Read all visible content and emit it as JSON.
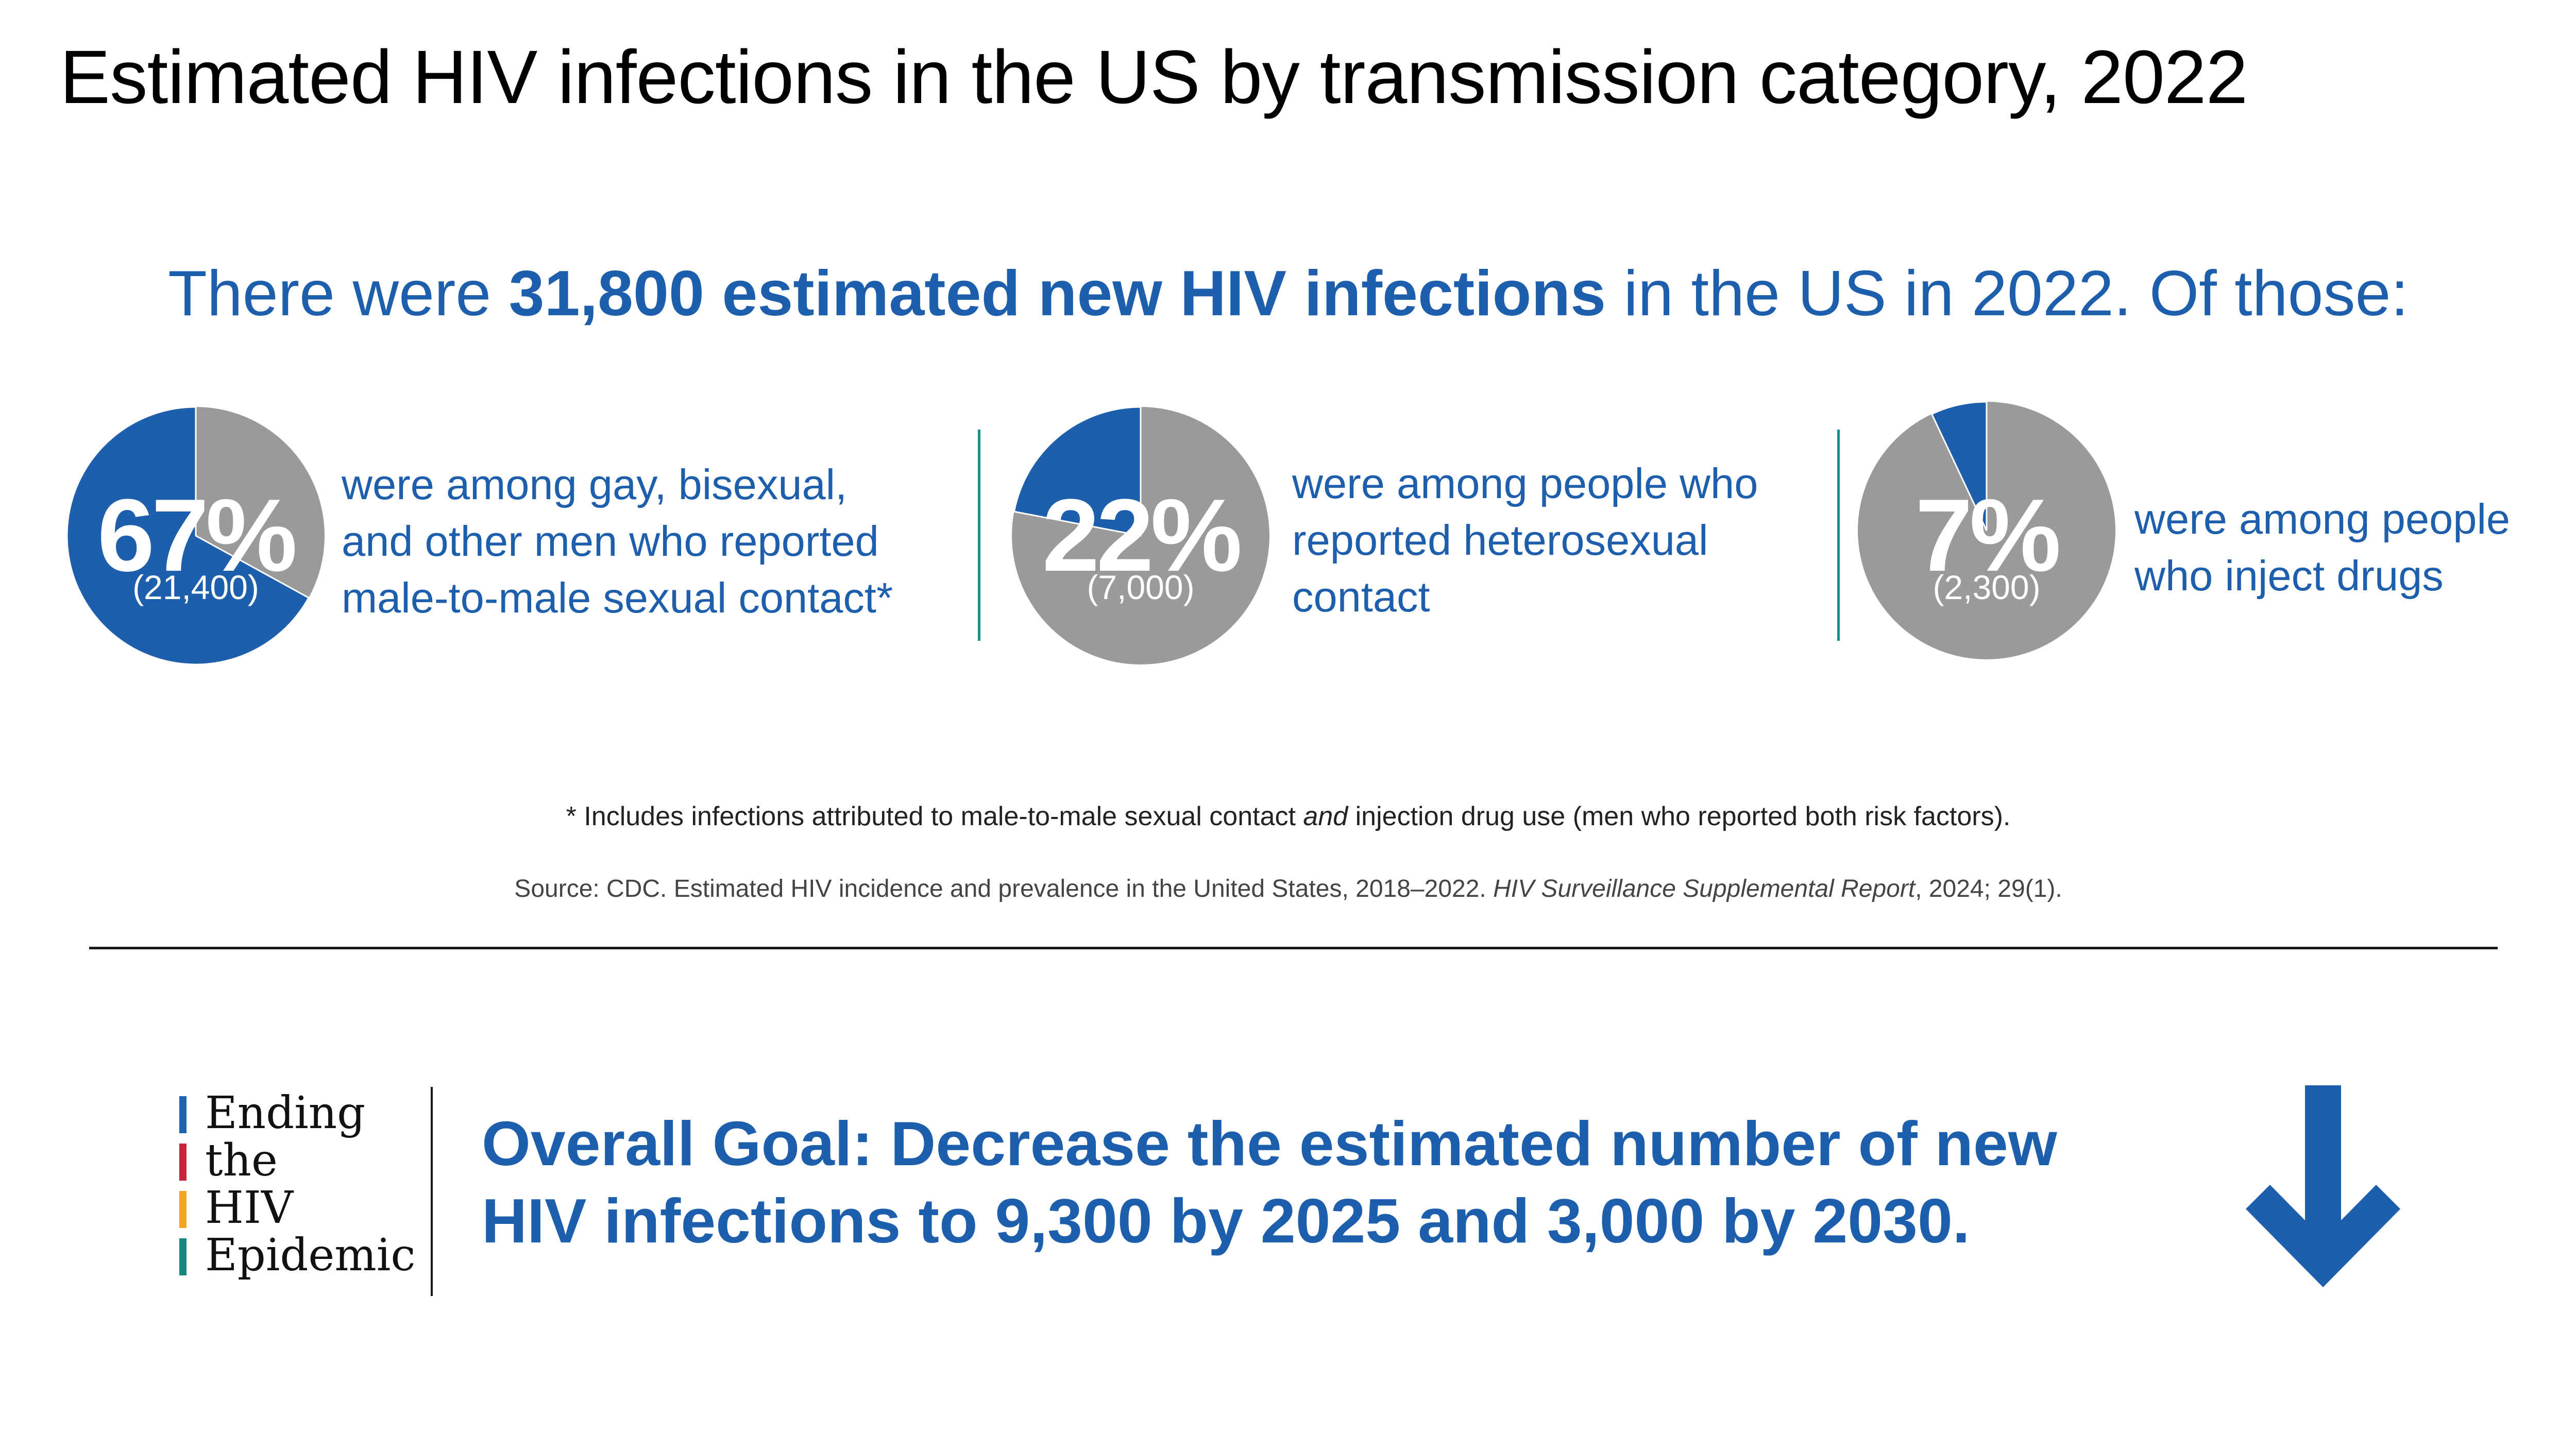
{
  "title": "Estimated HIV infections in the US by transmission category, 2022",
  "headline": {
    "before": "There were ",
    "bold": "31,800 estimated new HIV infections",
    "after": " in the US in 2022. Of those:"
  },
  "colors": {
    "accent_blue": "#1d5fad",
    "pie_gray": "#9a9a9d",
    "divider_teal": "#15908f",
    "logo_bars": [
      "#1f63b0",
      "#c8243c",
      "#f2a51c",
      "#14877f"
    ]
  },
  "chart_data": [
    {
      "type": "pie",
      "title": "",
      "categories": [
        "gay, bisexual, and other men who reported male-to-male sexual contact",
        "other"
      ],
      "values": [
        67,
        33
      ],
      "count": 21400,
      "label": "67%",
      "count_label": "(21,400)",
      "description_lines": [
        "were among gay, bisexual,",
        "and other men who reported",
        "male-to-male sexual contact*"
      ]
    },
    {
      "type": "pie",
      "title": "",
      "categories": [
        "people who reported heterosexual contact",
        "other"
      ],
      "values": [
        22,
        78
      ],
      "count": 7000,
      "label": "22%",
      "count_label": "(7,000)",
      "description_lines": [
        "were among people who",
        "reported heterosexual",
        "contact"
      ]
    },
    {
      "type": "pie",
      "title": "",
      "categories": [
        "people who inject drugs",
        "other"
      ],
      "values": [
        7,
        93
      ],
      "count": 2300,
      "label": "7%",
      "count_label": "(2,300)",
      "description_lines": [
        "were among people",
        "who inject drugs"
      ]
    }
  ],
  "footnote": {
    "before": "* Includes infections attributed to male-to-male sexual contact ",
    "italic": "and",
    "after": " injection drug use (men who reported both risk factors)."
  },
  "source": {
    "before": "Source: CDC. Estimated HIV incidence and prevalence in the United States, 2018–2022. ",
    "italic": "HIV Surveillance Supplemental Report",
    "after": ", 2024; 29(1)."
  },
  "logo": {
    "words": [
      "Ending",
      "the",
      "HIV",
      "Epidemic"
    ]
  },
  "goal": {
    "bold_lead": "Overall Goal:",
    "line1_rest": " Decrease the estimated number of new",
    "line2": "HIV infections to 9,300 by 2025 and 3,000 by 2030."
  },
  "icons": {
    "goal_arrow": "arrow-down-icon"
  }
}
